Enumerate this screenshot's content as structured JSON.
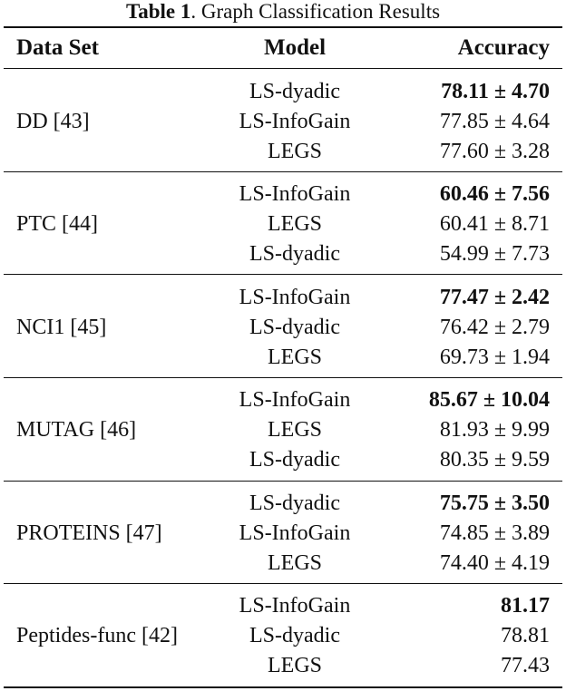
{
  "caption": {
    "label": "Table 1",
    "text": ". Graph Classification Results"
  },
  "headers": {
    "dataset": "Data Set",
    "model": "Model",
    "accuracy": "Accuracy"
  },
  "groups": [
    {
      "dataset": "DD [43]",
      "rows": [
        {
          "model": "LS-dyadic",
          "accuracy": "78.11 ± 4.70",
          "best": true
        },
        {
          "model": "LS-InfoGain",
          "accuracy": "77.85 ± 4.64",
          "best": false
        },
        {
          "model": "LEGS",
          "accuracy": "77.60 ± 3.28",
          "best": false
        }
      ]
    },
    {
      "dataset": "PTC [44]",
      "rows": [
        {
          "model": "LS-InfoGain",
          "accuracy": "60.46 ± 7.56",
          "best": true
        },
        {
          "model": "LEGS",
          "accuracy": "60.41 ± 8.71",
          "best": false
        },
        {
          "model": "LS-dyadic",
          "accuracy": "54.99 ± 7.73",
          "best": false
        }
      ]
    },
    {
      "dataset": "NCI1 [45]",
      "rows": [
        {
          "model": "LS-InfoGain",
          "accuracy": "77.47 ± 2.42",
          "best": true
        },
        {
          "model": "LS-dyadic",
          "accuracy": "76.42 ± 2.79",
          "best": false
        },
        {
          "model": "LEGS",
          "accuracy": "69.73 ± 1.94",
          "best": false
        }
      ]
    },
    {
      "dataset": "MUTAG [46]",
      "rows": [
        {
          "model": "LS-InfoGain",
          "accuracy": "85.67 ± 10.04",
          "best": true
        },
        {
          "model": "LEGS",
          "accuracy": "81.93 ± 9.99",
          "best": false
        },
        {
          "model": "LS-dyadic",
          "accuracy": "80.35 ± 9.59",
          "best": false
        }
      ]
    },
    {
      "dataset": "PROTEINS [47]",
      "rows": [
        {
          "model": "LS-dyadic",
          "accuracy": "75.75 ± 3.50",
          "best": true
        },
        {
          "model": "LS-InfoGain",
          "accuracy": "74.85 ± 3.89",
          "best": false
        },
        {
          "model": "LEGS",
          "accuracy": "74.40 ± 4.19",
          "best": false
        }
      ]
    },
    {
      "dataset": "Peptides-func [42]",
      "rows": [
        {
          "model": "LS-InfoGain",
          "accuracy": "81.17",
          "best": true
        },
        {
          "model": "LS-dyadic",
          "accuracy": "78.81",
          "best": false
        },
        {
          "model": "LEGS",
          "accuracy": "77.43",
          "best": false
        }
      ]
    }
  ]
}
